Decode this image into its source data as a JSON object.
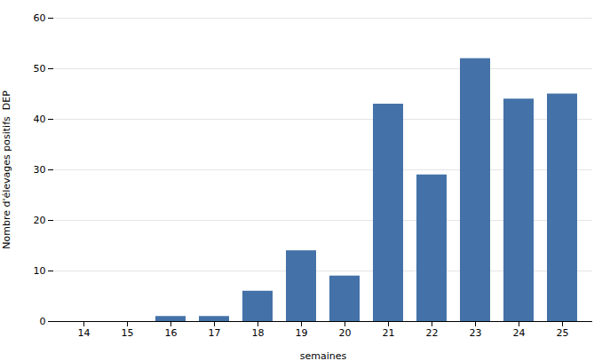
{
  "chart_data": {
    "type": "bar",
    "categories": [
      14,
      15,
      16,
      17,
      18,
      19,
      20,
      21,
      22,
      23,
      24,
      25
    ],
    "values": [
      0,
      0,
      1,
      1,
      6,
      14,
      9,
      43,
      29,
      52,
      44,
      45
    ],
    "color": "#4472a8",
    "xlabel": "semaines",
    "ylabel": "Nombre d'élevages positifs  DEP",
    "ylim": [
      0,
      60
    ],
    "yticks": [
      0,
      10,
      20,
      30,
      40,
      50,
      60
    ],
    "grid": true
  }
}
